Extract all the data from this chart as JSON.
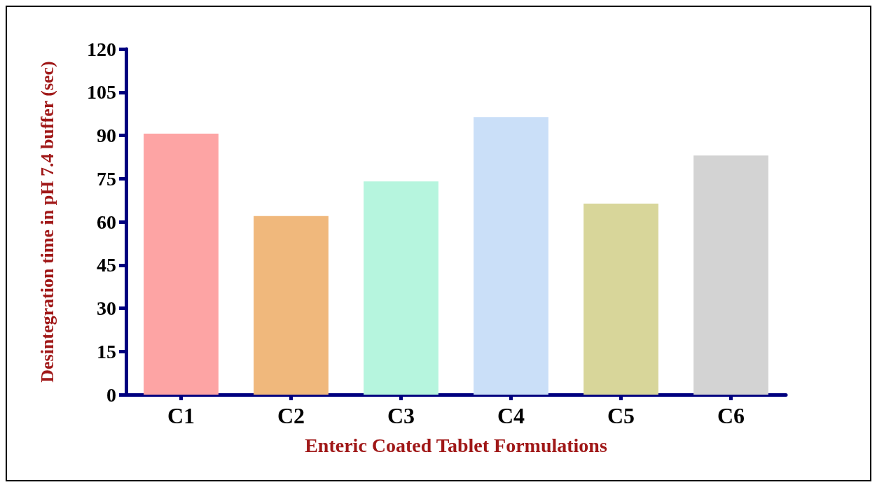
{
  "chart_data": {
    "type": "bar",
    "xlabel": "Enteric Coated Tablet Formulations",
    "ylabel": "Desintegration time in pH 7.4 buffer (sec)",
    "categories": [
      "C1",
      "C2",
      "C3",
      "C4",
      "C5",
      "C6"
    ],
    "values": [
      90.6,
      62,
      74,
      96.4,
      66.3,
      83
    ],
    "colors": [
      "#fda4a4",
      "#f0b87c",
      "#b6f5de",
      "#cadff8",
      "#d8d69a",
      "#d3d3d3"
    ],
    "ylim": [
      0,
      120
    ],
    "yticks": [
      0,
      15,
      30,
      45,
      60,
      75,
      90,
      105,
      120
    ],
    "grid": false
  }
}
